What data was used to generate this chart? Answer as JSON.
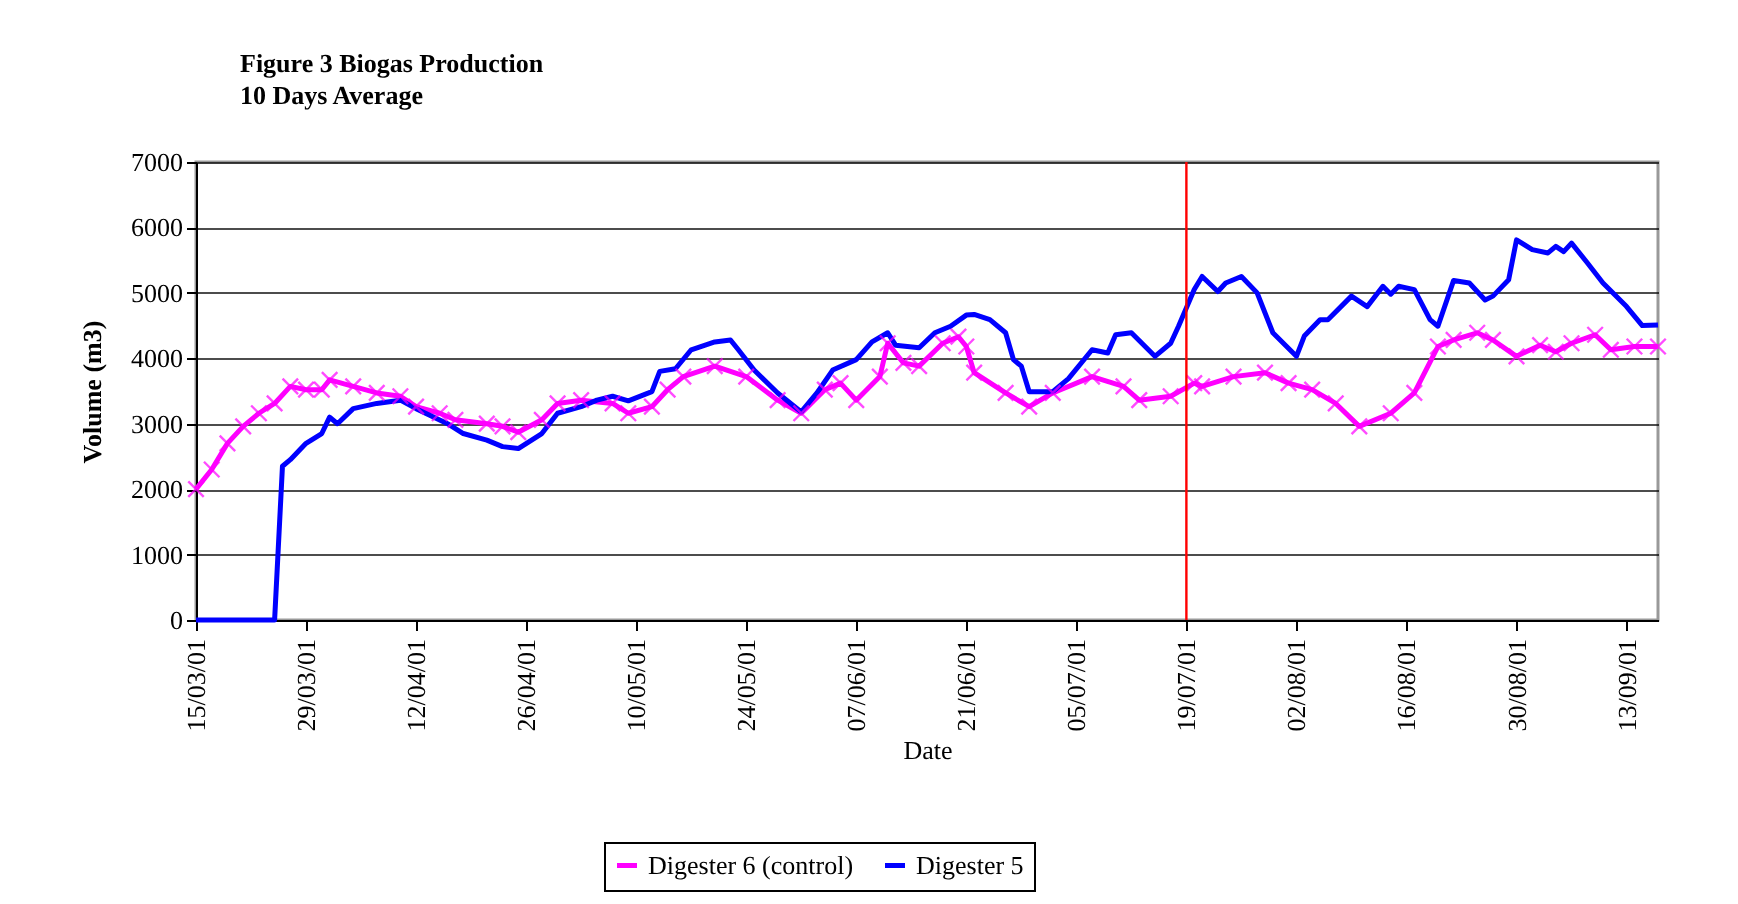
{
  "chart_data": {
    "type": "line",
    "title": "Figure 3        Biogas Production",
    "subtitle": "10 Days Average",
    "xlabel": "Date",
    "ylabel": "Volume (m3)",
    "xlim": [
      "--03-15",
      "--09-17"
    ],
    "xticks": [
      {
        "value": "--03-15",
        "label": "15/03/01"
      },
      {
        "value": "--03-29",
        "label": "29/03/01"
      },
      {
        "value": "--04-12",
        "label": "12/04/01"
      },
      {
        "value": "--04-26",
        "label": "26/04/01"
      },
      {
        "value": "--05-10",
        "label": "10/05/01"
      },
      {
        "value": "--05-24",
        "label": "24/05/01"
      },
      {
        "value": "--06-07",
        "label": "07/06/01"
      },
      {
        "value": "--06-21",
        "label": "21/06/01"
      },
      {
        "value": "--07-05",
        "label": "05/07/01"
      },
      {
        "value": "--07-19",
        "label": "19/07/01"
      },
      {
        "value": "--08-02",
        "label": "02/08/01"
      },
      {
        "value": "--08-16",
        "label": "16/08/01"
      },
      {
        "value": "--08-30",
        "label": "30/08/01"
      },
      {
        "value": "--09-13",
        "label": "13/09/01"
      }
    ],
    "ylim": [
      0,
      7000
    ],
    "yticks": [
      0,
      1000,
      2000,
      3000,
      4000,
      5000,
      6000,
      7000
    ],
    "grid": "y",
    "legend": "bottom",
    "ref_lines": [
      {
        "axis": "x",
        "value": "--07-19",
        "color": "#ff0000"
      }
    ],
    "series": [
      {
        "name": "Digester 6 (control)",
        "color": "#ff00ff",
        "marker": "cross",
        "x": [
          "--03-15",
          "--03-17",
          "--03-19",
          "--03-21",
          "--03-23",
          "--03-25",
          "--03-27",
          "--03-29",
          "--03-31",
          "--04-01",
          "--04-04",
          "--04-07",
          "--04-10",
          "--04-12",
          "--04-15",
          "--04-17",
          "--04-21",
          "--04-23",
          "--04-25",
          "--04-28",
          "--04-30",
          "--05-03",
          "--05-07",
          "--05-09",
          "--05-12",
          "--05-14",
          "--05-16",
          "--05-20",
          "--05-24",
          "--05-28",
          "--05-31",
          "--06-03",
          "--06-05",
          "--06-07",
          "--06-10",
          "--06-11",
          "--06-13",
          "--06-15",
          "--06-18",
          "--06-20",
          "--06-21",
          "--06-22",
          "--06-26",
          "--06-29",
          "--07-02",
          "--07-07",
          "--07-11",
          "--07-13",
          "--07-17",
          "--07-20",
          "--07-21",
          "--07-25",
          "--07-29",
          "--08-01",
          "--08-04",
          "--08-07",
          "--08-10",
          "--08-14",
          "--08-17",
          "--08-20",
          "--08-22",
          "--08-25",
          "--08-27",
          "--08-30",
          "--09-02",
          "--09-04",
          "--09-06",
          "--09-09",
          "--09-11",
          "--09-14",
          "--09-17"
        ],
        "values": [
          2000,
          2300,
          2700,
          2960,
          3160,
          3310,
          3570,
          3520,
          3520,
          3670,
          3570,
          3470,
          3420,
          3260,
          3160,
          3060,
          3000,
          2960,
          2870,
          3060,
          3310,
          3360,
          3310,
          3160,
          3260,
          3520,
          3720,
          3880,
          3720,
          3360,
          3160,
          3520,
          3620,
          3360,
          3720,
          4230,
          3930,
          3880,
          4230,
          4330,
          4180,
          3780,
          3470,
          3260,
          3470,
          3720,
          3570,
          3360,
          3420,
          3620,
          3570,
          3720,
          3780,
          3620,
          3520,
          3310,
          2960,
          3160,
          3470,
          4180,
          4280,
          4390,
          4280,
          4030,
          4200,
          4100,
          4230,
          4360,
          4130,
          4180,
          4180
        ]
      },
      {
        "name": "Digester 5",
        "color": "#0000ff",
        "marker": "none",
        "x": [
          "--03-15",
          "--03-25",
          "--03-26",
          "--03-27",
          "--03-29",
          "--03-31",
          "--04-01",
          "--04-02",
          "--04-04",
          "--04-07",
          "--04-10",
          "--04-12",
          "--04-16",
          "--04-18",
          "--04-21",
          "--04-23",
          "--04-25",
          "--04-28",
          "--04-30",
          "--05-03",
          "--05-05",
          "--05-07",
          "--05-09",
          "--05-12",
          "--05-13",
          "--05-15",
          "--05-17",
          "--05-20",
          "--05-22",
          "--05-23",
          "--05-25",
          "--05-28",
          "--05-31",
          "--06-02",
          "--06-04",
          "--06-07",
          "--06-09",
          "--06-11",
          "--06-12",
          "--06-15",
          "--06-17",
          "--06-19",
          "--06-21",
          "--06-22",
          "--06-24",
          "--06-26",
          "--06-27",
          "--06-28",
          "--06-29",
          "--07-02",
          "--07-04",
          "--07-07",
          "--07-09",
          "--07-10",
          "--07-12",
          "--07-15",
          "--07-17",
          "--07-18",
          "--07-20",
          "--07-21",
          "--07-23",
          "--07-24",
          "--07-26",
          "--07-28",
          "--07-30",
          "--08-02",
          "--08-03",
          "--08-05",
          "--08-06",
          "--08-09",
          "--08-11",
          "--08-13",
          "--08-14",
          "--08-15",
          "--08-17",
          "--08-19",
          "--08-20",
          "--08-22",
          "--08-24",
          "--08-26",
          "--08-27",
          "--08-29",
          "--08-30",
          "--09-01",
          "--09-03",
          "--09-04",
          "--09-05",
          "--09-06",
          "--09-08",
          "--09-10",
          "--09-13",
          "--09-15",
          "--09-17"
        ],
        "values": [
          0,
          0,
          2350,
          2450,
          2700,
          2850,
          3100,
          3000,
          3230,
          3310,
          3360,
          3230,
          3000,
          2850,
          2750,
          2650,
          2620,
          2850,
          3160,
          3260,
          3360,
          3420,
          3350,
          3490,
          3800,
          3840,
          4130,
          4250,
          4280,
          4130,
          3820,
          3470,
          3180,
          3470,
          3820,
          3980,
          4250,
          4390,
          4200,
          4160,
          4390,
          4490,
          4660,
          4670,
          4590,
          4390,
          3980,
          3880,
          3490,
          3490,
          3690,
          4130,
          4080,
          4360,
          4390,
          4030,
          4230,
          4490,
          5050,
          5250,
          5020,
          5150,
          5250,
          5000,
          4390,
          4030,
          4340,
          4590,
          4590,
          4950,
          4790,
          5100,
          4980,
          5100,
          5050,
          4590,
          4490,
          5190,
          5150,
          4890,
          4950,
          5200,
          5810,
          5660,
          5610,
          5710,
          5630,
          5760,
          5460,
          5150,
          4790,
          4500,
          4510
        ]
      }
    ]
  }
}
